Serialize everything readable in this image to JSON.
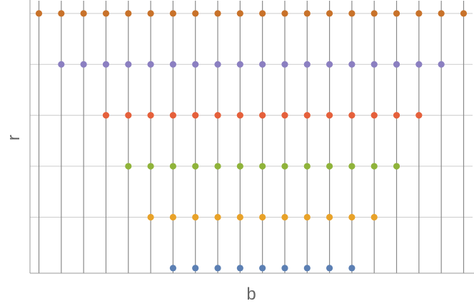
{
  "chart_data": {
    "type": "scatter",
    "title": "",
    "xlabel": "b",
    "ylabel": "r",
    "grid": true,
    "x_gridlines": [
      0,
      1,
      2,
      3,
      4,
      5,
      6,
      7,
      8,
      9,
      10,
      11,
      12,
      13,
      14,
      15,
      16,
      17,
      18,
      19
    ],
    "y_gridlines": [
      1,
      2,
      3,
      4,
      5
    ],
    "xlim": [
      -0.4,
      19.4
    ],
    "ylim": [
      -0.1,
      5.25
    ],
    "series": [
      {
        "color": "#5b7fb3",
        "x": [
          6,
          7,
          8,
          9,
          10,
          11,
          12,
          13,
          14
        ],
        "y": [
          0,
          0,
          0,
          0,
          0,
          0,
          0,
          0,
          0
        ]
      },
      {
        "color": "#e8a229",
        "x": [
          5,
          6,
          7,
          8,
          9,
          10,
          11,
          12,
          13,
          14,
          15
        ],
        "y": [
          1,
          1,
          1,
          1,
          1,
          1,
          1,
          1,
          1,
          1,
          1
        ]
      },
      {
        "color": "#8fb33a",
        "x": [
          4,
          5,
          6,
          7,
          8,
          9,
          10,
          11,
          12,
          13,
          14,
          15,
          16
        ],
        "y": [
          2,
          2,
          2,
          2,
          2,
          2,
          2,
          2,
          2,
          2,
          2,
          2,
          2
        ]
      },
      {
        "color": "#e5603b",
        "x": [
          3,
          4,
          5,
          6,
          7,
          8,
          9,
          10,
          11,
          12,
          13,
          14,
          15,
          16,
          17
        ],
        "y": [
          3,
          3,
          3,
          3,
          3,
          3,
          3,
          3,
          3,
          3,
          3,
          3,
          3,
          3,
          3
        ]
      },
      {
        "color": "#8b7fc1",
        "x": [
          1,
          2,
          3,
          4,
          5,
          6,
          7,
          8,
          9,
          10,
          11,
          12,
          13,
          14,
          15,
          16,
          17,
          18
        ],
        "y": [
          4,
          4,
          4,
          4,
          4,
          4,
          4,
          4,
          4,
          4,
          4,
          4,
          4,
          4,
          4,
          4,
          4,
          4
        ]
      },
      {
        "color": "#c8722a",
        "x": [
          0,
          1,
          2,
          3,
          4,
          5,
          6,
          7,
          8,
          9,
          10,
          11,
          12,
          13,
          14,
          15,
          16,
          17,
          18,
          19
        ],
        "y": [
          5,
          5,
          5,
          5,
          5,
          5,
          5,
          5,
          5,
          5,
          5,
          5,
          5,
          5,
          5,
          5,
          5,
          5,
          5,
          5
        ]
      }
    ]
  }
}
